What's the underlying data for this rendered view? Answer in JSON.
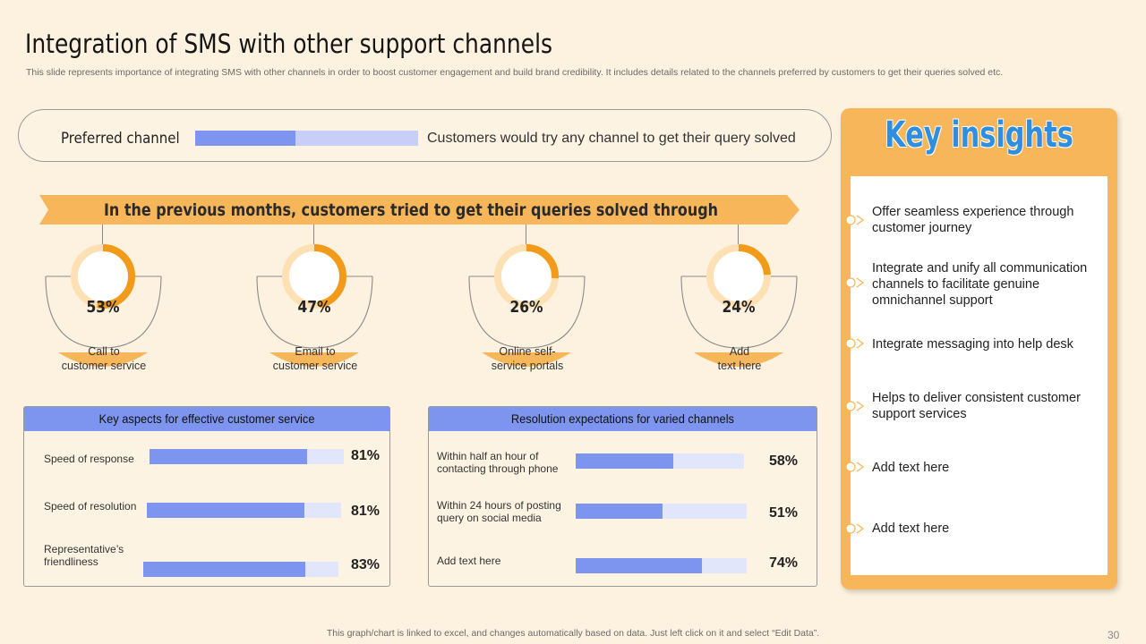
{
  "header": {
    "title": "Integration of SMS with other support channels",
    "subtitle": "This slide represents importance of integrating SMS with other channels in order to boost customer engagement and build brand credibility. It includes details related to the channels preferred by customers to get their queries solved etc."
  },
  "preferred": {
    "label": "Preferred channel",
    "fill_fraction": 0.45,
    "text": "Customers would try any channel to get their query solved"
  },
  "banner": {
    "text": "In the previous months, customers tried to get their queries solved through"
  },
  "colors": {
    "accent_orange": "#f7b65a",
    "ring_orange": "#f29a1a",
    "ring_light": "#fde0b4",
    "bar_blue": "#7d95ef",
    "bar_light": "#e2e6fb",
    "title_blue": "#2f8fde"
  },
  "chart_data": [
    {
      "type": "pie",
      "title": "In the previous months, customers tried to get their queries solved through",
      "categories": [
        "Call to customer service",
        "Email to customer service",
        "Online self-service portals",
        "Add text here"
      ],
      "values": [
        53,
        47,
        26,
        24
      ],
      "unit": "%"
    },
    {
      "type": "bar",
      "orientation": "horizontal",
      "title": "Key aspects for effective customer service",
      "categories": [
        "Speed of response",
        "Speed of resolution",
        "Representative's friendliness"
      ],
      "values": [
        81,
        81,
        83
      ],
      "unit": "%",
      "xlim": [
        0,
        100
      ]
    },
    {
      "type": "bar",
      "orientation": "horizontal",
      "title": "Resolution expectations for varied channels",
      "categories": [
        "Within half an hour of contacting through phone",
        "Within 24 hours of posting query on social media",
        "Add text here"
      ],
      "values": [
        58,
        51,
        74
      ],
      "unit": "%",
      "xlim": [
        0,
        100
      ]
    }
  ],
  "stats": [
    {
      "pct": "53%",
      "value": 53,
      "line1": "Call to",
      "line2": "customer service"
    },
    {
      "pct": "47%",
      "value": 47,
      "line1": "Email to",
      "line2": "customer service"
    },
    {
      "pct": "26%",
      "value": 26,
      "line1": "Online self-",
      "line2": "service  portals"
    },
    {
      "pct": "24%",
      "value": 24,
      "line1": "Add",
      "line2": "text here"
    }
  ],
  "aspects": {
    "title": "Key aspects for effective customer service",
    "rows": [
      {
        "line1": "Speed of response",
        "line2": "",
        "value": 81,
        "label": "81%"
      },
      {
        "line1": "Speed of resolution",
        "line2": "",
        "value": 81,
        "label": "81%"
      },
      {
        "line1": "Representative’s",
        "line2": "friendliness",
        "value": 83,
        "label": "83%"
      }
    ]
  },
  "resolution": {
    "title": "Resolution expectations for varied channels",
    "rows": [
      {
        "line1": "Within half an hour of",
        "line2": "contacting through phone",
        "value": 58,
        "label": "58%"
      },
      {
        "line1": "Within 24 hours of posting",
        "line2": "query on social media",
        "value": 51,
        "label": "51%"
      },
      {
        "line1": "Add text here",
        "line2": "",
        "value": 74,
        "label": "74%"
      }
    ]
  },
  "insights": {
    "title": "Key insights",
    "items": [
      {
        "line1": "Offer seamless experience through",
        "line2": "customer journey",
        "line3": ""
      },
      {
        "line1": "Integrate and unify all communication",
        "line2": "channels to facilitate genuine",
        "line3": "omnichannel support"
      },
      {
        "line1": "Integrate messaging into help desk",
        "line2": "",
        "line3": ""
      },
      {
        "line1": "Helps to deliver consistent customer",
        "line2": "support services",
        "line3": ""
      },
      {
        "line1": "Add text here",
        "line2": "",
        "line3": ""
      },
      {
        "line1": "Add text here",
        "line2": "",
        "line3": ""
      }
    ]
  },
  "footer": {
    "note": "This graph/chart is linked to excel,  and changes automatically based on data. Just left click on it and select “Edit Data”.",
    "page": "30"
  }
}
